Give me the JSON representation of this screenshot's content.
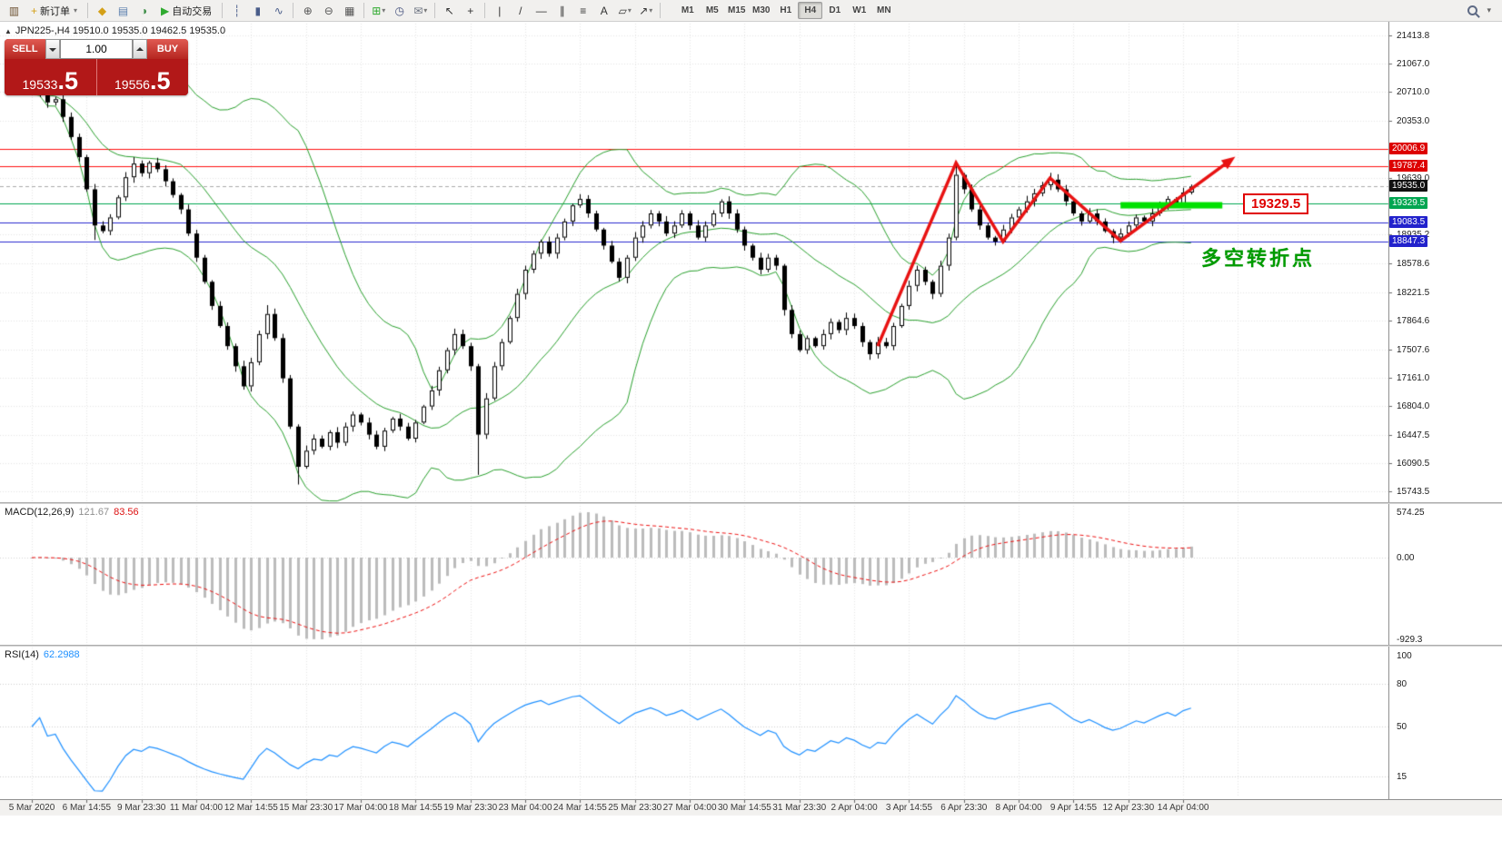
{
  "toolbar": {
    "dropdown_glyph": "▾",
    "items": [
      {
        "kind": "icon",
        "name": "new-chart-icon",
        "glyph": "▥",
        "color": "#6b4f2f"
      },
      {
        "kind": "labelbtn",
        "name": "new-order-button",
        "label": "新订单",
        "glyph": "+",
        "color": "#d4a017",
        "dropdown": true
      },
      {
        "kind": "sep"
      },
      {
        "kind": "icon",
        "name": "favorites-icon",
        "glyph": "◆",
        "color": "#d4a017"
      },
      {
        "kind": "icon",
        "name": "profiles-icon",
        "glyph": "▤",
        "color": "#5b7fae"
      },
      {
        "kind": "icon",
        "name": "refresh-icon",
        "glyph": "◑",
        "color": "#3c8d46"
      },
      {
        "kind": "labelbtn",
        "name": "auto-trading-button",
        "label": "自动交易",
        "glyph": "▶",
        "color": "#2faa2f"
      },
      {
        "kind": "sep"
      },
      {
        "kind": "icon",
        "name": "bar-chart-type-icon",
        "glyph": "┆",
        "color": "#4a5d8a"
      },
      {
        "kind": "icon",
        "name": "candlestick-type-icon",
        "glyph": "▮",
        "color": "#4a5d8a"
      },
      {
        "kind": "icon",
        "name": "line-chart-type-icon",
        "glyph": "∿",
        "color": "#4a5d8a"
      },
      {
        "kind": "sep"
      },
      {
        "kind": "icon",
        "name": "zoom-in-icon",
        "glyph": "⊕",
        "color": "#555555"
      },
      {
        "kind": "icon",
        "name": "zoom-out-icon",
        "glyph": "⊖",
        "color": "#555555"
      },
      {
        "kind": "icon",
        "name": "tile-windows-icon",
        "glyph": "▦",
        "color": "#555555"
      },
      {
        "kind": "sep"
      },
      {
        "kind": "icon",
        "name": "new-chart-green-icon",
        "glyph": "⊞",
        "color": "#2faa2f",
        "dropdown": true
      },
      {
        "kind": "icon",
        "name": "clock-icon",
        "glyph": "◷",
        "color": "#44517d"
      },
      {
        "kind": "icon",
        "name": "mailbox-icon",
        "glyph": "✉",
        "color": "#6b7280",
        "dropdown": true
      },
      {
        "kind": "sep"
      },
      {
        "kind": "icon",
        "name": "cursor-icon",
        "glyph": "↖",
        "color": "#333333"
      },
      {
        "kind": "icon",
        "name": "crosshair-icon",
        "glyph": "+",
        "color": "#333333"
      },
      {
        "kind": "sep"
      },
      {
        "kind": "icon",
        "name": "vertical-line-icon",
        "glyph": "|",
        "color": "#333333"
      },
      {
        "kind": "icon",
        "name": "trendline-icon",
        "glyph": "/",
        "color": "#333333"
      },
      {
        "kind": "icon",
        "name": "horizontal-line-icon",
        "glyph": "—",
        "color": "#333333"
      },
      {
        "kind": "icon",
        "name": "equidistant-channel-icon",
        "glyph": "∥",
        "color": "#333333"
      },
      {
        "kind": "icon",
        "name": "fibonacci-icon",
        "glyph": "≡",
        "color": "#333333"
      },
      {
        "kind": "icon",
        "name": "text-label-icon",
        "glyph": "A",
        "color": "#333333"
      },
      {
        "kind": "icon",
        "name": "shapes-icon",
        "glyph": "▱",
        "color": "#333333",
        "dropdown": true
      },
      {
        "kind": "icon",
        "name": "arrow-object-icon",
        "glyph": "↗",
        "color": "#333333",
        "dropdown": true
      },
      {
        "kind": "sep"
      }
    ],
    "timeframes": [
      "M1",
      "M5",
      "M15",
      "M30",
      "H1",
      "H4",
      "D1",
      "W1",
      "MN"
    ],
    "active_timeframe": "H4"
  },
  "symbol_header": {
    "text": "JPN225-,H4  19510.0 19535.0 19462.5 19535.0"
  },
  "trade_panel": {
    "sell_label": "SELL",
    "buy_label": "BUY",
    "lot_size": "1.00",
    "bid": "19533.5",
    "ask": "19556.5"
  },
  "annotations": {
    "support_label": "19329.5",
    "turning_point_text": "多空转折点",
    "turning_point_anchor_price": 18840
  },
  "macd_panel": {
    "label": "MACD(12,26,9)",
    "value_main": "121.67",
    "value_signal": "83.56",
    "axis": [
      "574.25",
      "0.00",
      "-929.3"
    ]
  },
  "rsi_panel": {
    "label": "RSI(14)",
    "value": "62.2988",
    "axis": [
      "100",
      "80",
      "50",
      "15"
    ]
  },
  "time_axis": {
    "labels": [
      "5 Mar 2020",
      "6 Mar 14:55",
      "9 Mar 23:30",
      "11 Mar 04:00",
      "12 Mar 14:55",
      "15 Mar 23:30",
      "17 Mar 04:00",
      "18 Mar 14:55",
      "19 Mar 23:30",
      "23 Mar 04:00",
      "24 Mar 14:55",
      "25 Mar 23:30",
      "27 Mar 04:00",
      "30 Mar 14:55",
      "31 Mar 23:30",
      "2 Apr 04:00",
      "3 Apr 14:55",
      "6 Apr 23:30",
      "8 Apr 04:00",
      "9 Apr 14:55",
      "12 Apr 23:30",
      "14 Apr 04:00"
    ]
  },
  "chart_data": {
    "type": "candlestick",
    "symbol": "JPN225-",
    "timeframe": "H4",
    "ohlc": {
      "open": 19510.0,
      "high": 19535.0,
      "low": 19462.5,
      "close": 19535.0
    },
    "price_range": {
      "max": 21560,
      "min": 15610
    },
    "y_axis_ticks": [
      21413.8,
      21067.0,
      20710.0,
      20353.0,
      19639.0,
      18935.2,
      18578.6,
      18221.5,
      17864.6,
      17507.6,
      17161.0,
      16804.0,
      16447.5,
      16090.5,
      15743.5
    ],
    "closes": [
      20690,
      20740,
      20580,
      20620,
      20400,
      20150,
      19900,
      19500,
      19050,
      18980,
      19150,
      19400,
      19650,
      19820,
      19700,
      19830,
      19750,
      19600,
      19430,
      19250,
      18950,
      18650,
      18350,
      18050,
      17800,
      17550,
      17300,
      17050,
      17350,
      17700,
      17950,
      17650,
      17150,
      16550,
      16050,
      16250,
      16400,
      16300,
      16480,
      16350,
      16550,
      16700,
      16600,
      16450,
      16300,
      16500,
      16650,
      16550,
      16400,
      16600,
      16800,
      17000,
      17250,
      17500,
      17700,
      17550,
      17300,
      16450,
      16900,
      17300,
      17600,
      17900,
      18200,
      18500,
      18700,
      18850,
      18700,
      18900,
      19100,
      19300,
      19380,
      19200,
      19000,
      18800,
      18600,
      18400,
      18650,
      18900,
      19050,
      19200,
      19100,
      18950,
      19050,
      19200,
      19050,
      18900,
      19050,
      19200,
      19350,
      19200,
      19000,
      18800,
      18650,
      18500,
      18650,
      18550,
      18000,
      17700,
      17500,
      17650,
      17550,
      17700,
      17850,
      17750,
      17900,
      17800,
      17600,
      17450,
      17600,
      17550,
      17800,
      18050,
      18300,
      18500,
      18350,
      18200,
      18550,
      18900,
      19680,
      19500,
      19250,
      19050,
      18900,
      18850,
      19000,
      19150,
      19250,
      19350,
      19450,
      19550,
      19620,
      19500,
      19350,
      19200,
      19100,
      19200,
      19100,
      18980,
      18900,
      18950,
      19050,
      19150,
      19100,
      19200,
      19300,
      19380,
      19320,
      19460,
      19535
    ],
    "wick_high_overrides": {
      "1": 20790,
      "13": 19900,
      "30": 18060,
      "70": 19440,
      "118": 19845,
      "130": 19705,
      "148": 19560
    },
    "wick_low_overrides": {
      "8": 18870,
      "34": 15830,
      "57": 15950,
      "96": 17930,
      "107": 17380,
      "138": 18830
    },
    "levels": [
      {
        "price": 20006.9,
        "label": "20006.9",
        "color": "#ff1111",
        "label_bg": "#dd0000",
        "label_fg": "#ffffff",
        "style": "solid"
      },
      {
        "price": 19787.4,
        "label": "19787.4",
        "color": "#ff1111",
        "label_bg": "#dd0000",
        "label_fg": "#ffffff",
        "style": "solid"
      },
      {
        "price": 19535.0,
        "label": "19535.0",
        "color": "#aaaaaa",
        "label_bg": "#111111",
        "label_fg": "#ffffff",
        "style": "dashed"
      },
      {
        "price": 19329.5,
        "label": "19329.5",
        "color": "#00a651",
        "label_bg": "#00a651",
        "label_fg": "#ffffff",
        "style": "solid"
      },
      {
        "price": 19083.5,
        "label": "19083.5",
        "color": "#2a2ad0",
        "label_bg": "#2222cc",
        "label_fg": "#ffffff",
        "style": "solid"
      },
      {
        "price": 18847.3,
        "label": "18847.3",
        "color": "#2a2ad0",
        "label_bg": "#2222cc",
        "label_fg": "#ffffff",
        "style": "solid"
      }
    ],
    "indicators": {
      "bollinger": {
        "period": 20,
        "deviation": 2,
        "color": "#2aa12e"
      },
      "macd": {
        "fast": 12,
        "slow": 26,
        "signal_period": 9,
        "histogram_color": "#bcbcbc",
        "signal_color": "#ee1111",
        "axis_max": 574.25,
        "axis_min": -929.3
      },
      "rsi": {
        "period": 14,
        "color": "#1e90ff",
        "levels": [
          80,
          50,
          15
        ]
      }
    },
    "trend_arrows": {
      "color": "#e81212",
      "width": 3.5,
      "points": [
        [
          108,
          17550
        ],
        [
          118,
          19830
        ],
        [
          124,
          18850
        ],
        [
          130,
          19640
        ],
        [
          139,
          18860
        ],
        [
          153,
          19860
        ]
      ]
    },
    "support_bar": {
      "price": 19329.5,
      "from_index": 139,
      "to_index": 152,
      "color": "#00e100",
      "thickness": 7
    }
  }
}
